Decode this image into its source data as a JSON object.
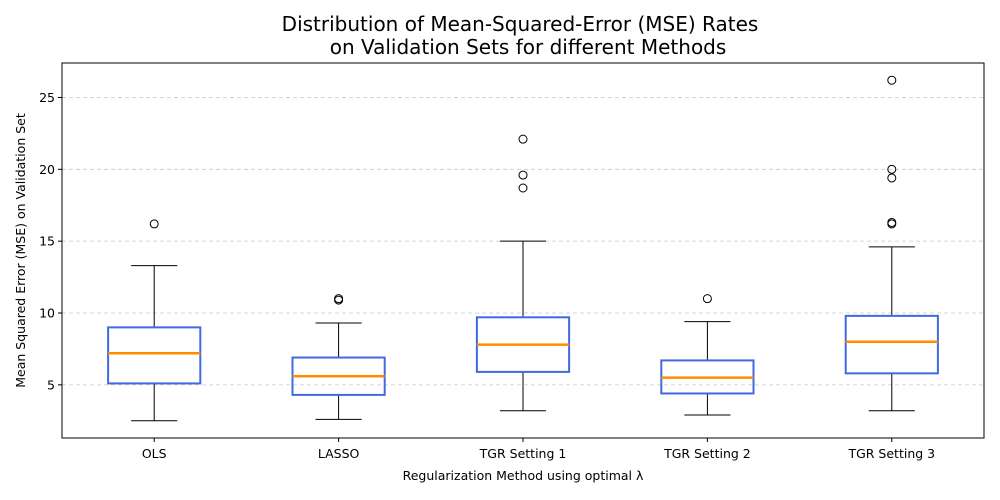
{
  "chart_data": {
    "type": "box",
    "title_line1": "Distribution of Mean-Squared-Error (MSE) Rates",
    "title_line2": "on Validation Sets for different Methods",
    "xlabel": "Regularization Method using optimal λ",
    "ylabel": "Mean Squared Error (MSE) on Validation Set",
    "ylim": [
      1.3,
      27.4
    ],
    "yticks": [
      5,
      10,
      15,
      20,
      25
    ],
    "grid": "y-dashed",
    "categories": [
      "OLS",
      "LASSO",
      "TGR Setting 1",
      "TGR Setting 2",
      "TGR Setting 3"
    ],
    "boxes": [
      {
        "whisker_low": 2.5,
        "q1": 5.1,
        "median": 7.2,
        "q3": 9.0,
        "whisker_high": 13.3,
        "outliers": [
          16.2
        ]
      },
      {
        "whisker_low": 2.6,
        "q1": 4.3,
        "median": 5.6,
        "q3": 6.9,
        "whisker_high": 9.3,
        "outliers": [
          10.9,
          11.0
        ]
      },
      {
        "whisker_low": 3.2,
        "q1": 5.9,
        "median": 7.8,
        "q3": 9.7,
        "whisker_high": 15.0,
        "outliers": [
          18.7,
          19.6,
          22.1
        ]
      },
      {
        "whisker_low": 2.9,
        "q1": 4.4,
        "median": 5.5,
        "q3": 6.7,
        "whisker_high": 9.4,
        "outliers": [
          11.0
        ]
      },
      {
        "whisker_low": 3.2,
        "q1": 5.8,
        "median": 8.0,
        "q3": 9.8,
        "whisker_high": 14.6,
        "outliers": [
          16.2,
          16.3,
          19.4,
          20.0,
          26.2
        ]
      }
    ],
    "colors": {
      "box": "#4169e1",
      "median": "#ff8c00",
      "whisker": "#000000",
      "grid": "#c8c8c8"
    }
  }
}
